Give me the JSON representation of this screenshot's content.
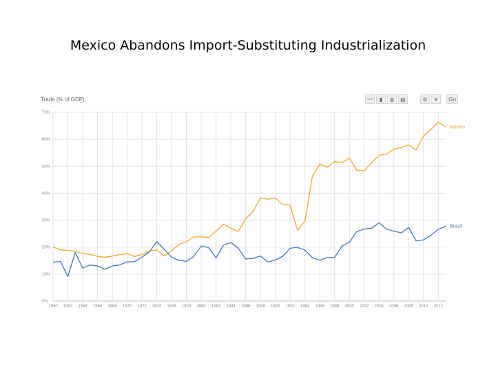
{
  "title": "Mexico Abandons Import-Substituting Industrialization",
  "chart_heading": "Trade (% of GDP)",
  "toolbar": [
    {
      "name": "line-chart-icon",
      "glyph": "〰"
    },
    {
      "name": "bar-chart-icon",
      "glyph": "▮"
    },
    {
      "name": "globe-icon",
      "glyph": "◍"
    },
    {
      "name": "table-icon",
      "glyph": "▤"
    },
    {
      "name": "gear-icon",
      "glyph": "⚙"
    },
    {
      "name": "dropdown-icon",
      "glyph": "▾"
    },
    {
      "name": "go-button",
      "glyph": "Go"
    }
  ],
  "chart_data": {
    "type": "line",
    "x": [
      1960,
      1961,
      1962,
      1963,
      1964,
      1965,
      1966,
      1967,
      1968,
      1969,
      1970,
      1971,
      1972,
      1973,
      1974,
      1975,
      1976,
      1977,
      1978,
      1979,
      1980,
      1981,
      1982,
      1983,
      1984,
      1985,
      1986,
      1987,
      1988,
      1989,
      1990,
      1991,
      1992,
      1993,
      1994,
      1995,
      1996,
      1997,
      1998,
      1999,
      2000,
      2001,
      2002,
      2003,
      2004,
      2005,
      2006,
      2007,
      2008,
      2009,
      2010,
      2011,
      2012,
      2013
    ],
    "xlim": [
      1960,
      2013
    ],
    "x_ticks": [
      1960,
      1962,
      1964,
      1966,
      1968,
      1970,
      1972,
      1974,
      1976,
      1978,
      1980,
      1982,
      1984,
      1986,
      1988,
      1990,
      1992,
      1994,
      1996,
      1998,
      2000,
      2002,
      2004,
      2006,
      2008,
      2010,
      2012
    ],
    "ylim": [
      0,
      70
    ],
    "y_ticks": [
      0,
      10,
      20,
      30,
      40,
      50,
      60,
      70
    ],
    "y_tick_labels": [
      "0%",
      "10%",
      "20%",
      "30%",
      "40%",
      "50%",
      "60%",
      "70%"
    ],
    "grid": true,
    "series": [
      {
        "name": "Mexico",
        "color": "#f0ad2d",
        "values": [
          20,
          19,
          18.7,
          18.5,
          17.6,
          17.3,
          16.6,
          16.2,
          16.7,
          17.2,
          17.6,
          16.5,
          17.3,
          18.5,
          19,
          16.7,
          18.7,
          21,
          22,
          23.8,
          23.8,
          23.6,
          25.9,
          28.5,
          27,
          25.8,
          30.5,
          33.2,
          38.3,
          37.8,
          38.1,
          35.8,
          35.6,
          26.2,
          29.7,
          46.2,
          50.8,
          49.6,
          51.7,
          51.3,
          53,
          48.5,
          48.3,
          51.3,
          54.1,
          54.5,
          56.3,
          57,
          57.9,
          56,
          61.2,
          63.6,
          66.4,
          64.5
        ]
      },
      {
        "name": "Brazil",
        "color": "#4a7cc7",
        "values": [
          14.4,
          14.7,
          9.1,
          18,
          12.2,
          13.4,
          13,
          11.8,
          13,
          13.4,
          14.5,
          14.6,
          16.3,
          18.2,
          22.1,
          19.2,
          16.2,
          15.1,
          14.7,
          16.6,
          20.4,
          19.8,
          16.1,
          20.7,
          21.7,
          19.6,
          15.6,
          15.8,
          16.7,
          14.5,
          15.2,
          16.6,
          19.6,
          19.9,
          18.9,
          16.1,
          15.1,
          16.1,
          16.2,
          20.4,
          21.8,
          25.8,
          26.7,
          27,
          29,
          26.7,
          25.9,
          25.3,
          27.3,
          22.3,
          22.7,
          24.4,
          26.6,
          27.7
        ]
      }
    ]
  }
}
